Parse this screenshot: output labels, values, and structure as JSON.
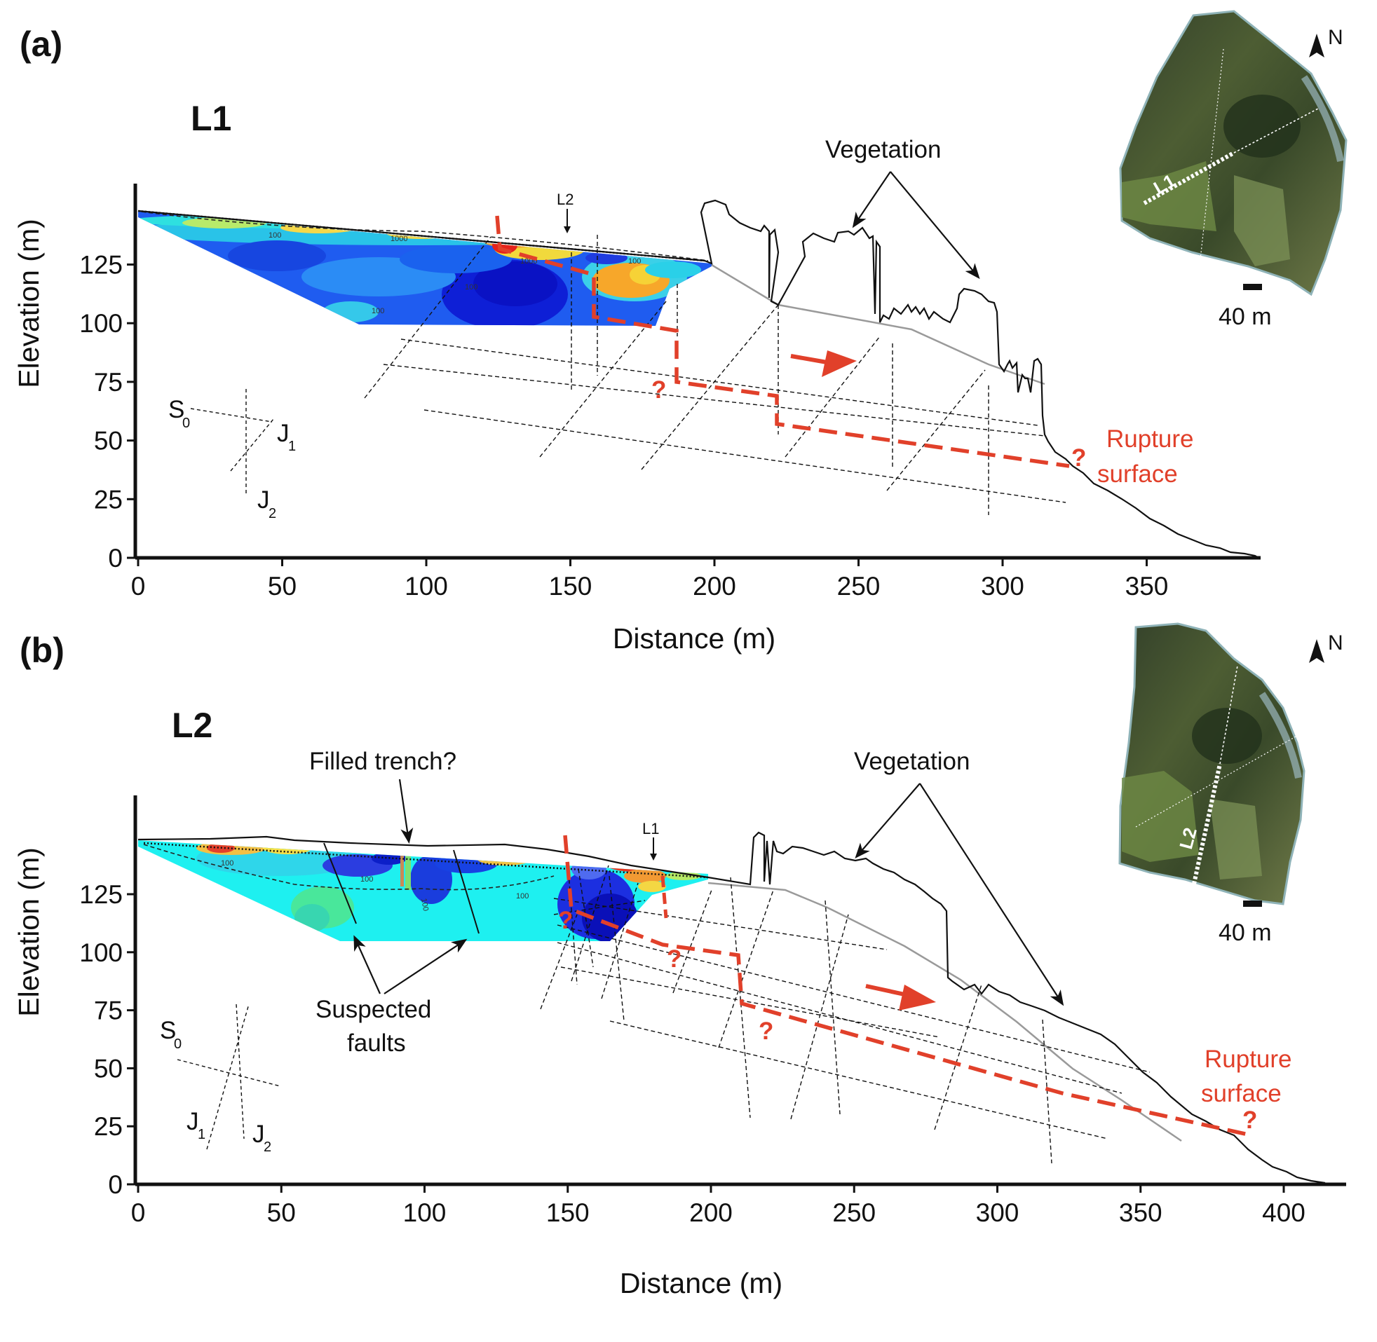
{
  "colors": {
    "rupture": "#e1402a",
    "topo": "#111111",
    "ground_gray": "#9a9a9a"
  },
  "panel_a": {
    "label": "(a)",
    "line_name": "L1",
    "x_axis_title": "Distance (m)",
    "y_axis_title": "Elevation (m)",
    "x_ticks": [
      "0",
      "50",
      "100",
      "150",
      "200",
      "250",
      "300",
      "350"
    ],
    "y_ticks": [
      "0",
      "25",
      "50",
      "75",
      "100",
      "125"
    ],
    "vegetation": "Vegetation",
    "rupture_label_1": "Rupture",
    "rupture_label_2": "surface",
    "question": "?",
    "cross_line": "L2",
    "contour_labels": [
      "100",
      "1000",
      "100",
      "1000",
      "100",
      "100"
    ],
    "stereo": {
      "s0": "S",
      "s0_sub": "0",
      "j1": "J",
      "j1_sub": "1",
      "j2": "J",
      "j2_sub": "2"
    },
    "inset": {
      "north": "N",
      "scale": "40 m",
      "line": "L1"
    }
  },
  "panel_b": {
    "label": "(b)",
    "line_name": "L2",
    "x_axis_title": "Distance (m)",
    "y_axis_title": "Elevation (m)",
    "x_ticks": [
      "0",
      "50",
      "100",
      "150",
      "200",
      "250",
      "300",
      "350",
      "400"
    ],
    "y_ticks": [
      "0",
      "25",
      "50",
      "75",
      "100",
      "125"
    ],
    "vegetation": "Vegetation",
    "filled_trench": "Filled trench?",
    "suspected_1": "Suspected",
    "suspected_2": "faults",
    "rupture_label_1": "Rupture",
    "rupture_label_2": "surface",
    "question": "?",
    "cross_line": "L1",
    "contour_labels": [
      "100",
      "100",
      "100",
      "100"
    ],
    "stereo": {
      "s0": "S",
      "s0_sub": "0",
      "j1": "J",
      "j1_sub": "1",
      "j2": "J",
      "j2_sub": "2"
    },
    "inset": {
      "north": "N",
      "scale": "40 m",
      "line": "L2"
    }
  }
}
